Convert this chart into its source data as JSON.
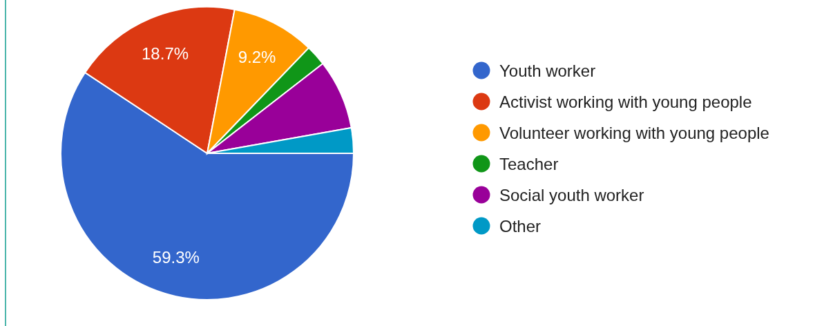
{
  "chart_data": {
    "type": "pie",
    "categories": [
      "Youth worker",
      "Activist working with young people",
      "Volunteer working with young people",
      "Teacher",
      "Social youth worker",
      "Other"
    ],
    "values": [
      59.3,
      18.7,
      9.2,
      2.3,
      7.7,
      2.8
    ],
    "colors": [
      "#3366cc",
      "#dc3912",
      "#ff9900",
      "#109618",
      "#990099",
      "#0099c6"
    ],
    "value_labels": [
      "59.3%",
      "18.7%",
      "9.2%",
      null,
      null,
      null
    ],
    "legend": "right"
  }
}
